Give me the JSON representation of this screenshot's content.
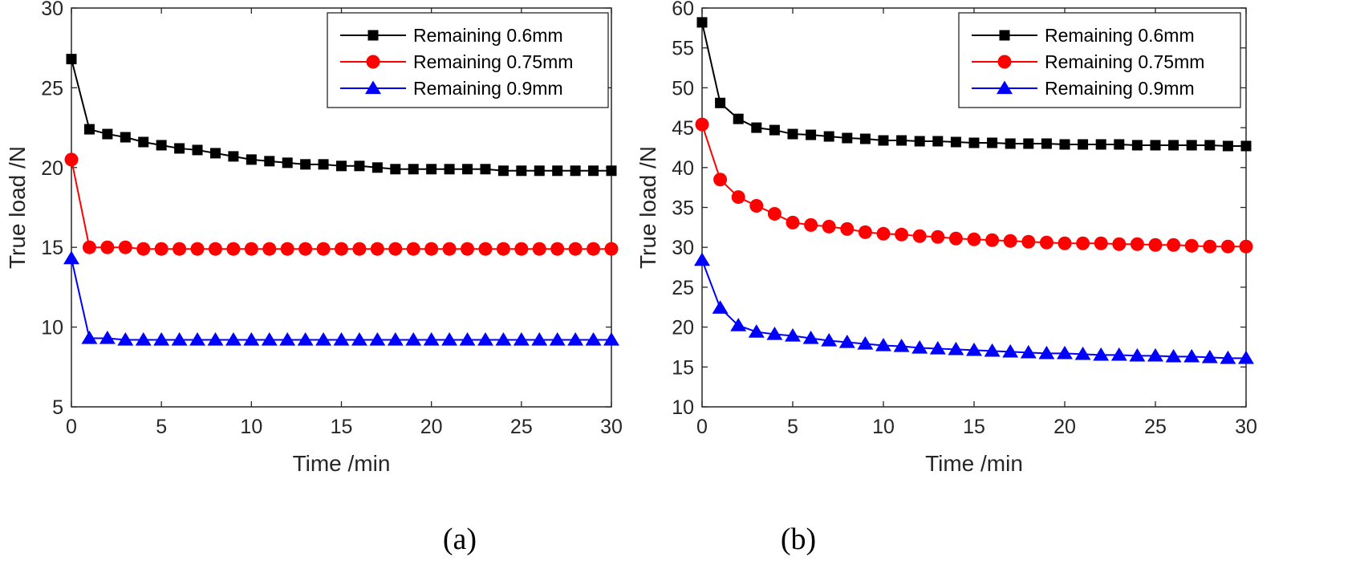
{
  "chart_data": [
    {
      "type": "line",
      "panel_label": "(a)",
      "title": "",
      "xlabel": "Time /min",
      "ylabel": "True load /N",
      "xlim": [
        0,
        30
      ],
      "ylim": [
        5,
        30
      ],
      "xticks": [
        0,
        5,
        10,
        15,
        20,
        25,
        30
      ],
      "yticks": [
        5,
        10,
        15,
        20,
        25,
        30
      ],
      "legend_position": "top-right",
      "x": [
        0,
        1,
        2,
        3,
        4,
        5,
        6,
        7,
        8,
        9,
        10,
        11,
        12,
        13,
        14,
        15,
        16,
        17,
        18,
        19,
        20,
        21,
        22,
        23,
        24,
        25,
        26,
        27,
        28,
        29,
        30
      ],
      "series": [
        {
          "name": "Remaining 0.6mm",
          "color": "#000000",
          "marker": "square",
          "values": [
            26.8,
            22.4,
            22.1,
            21.9,
            21.6,
            21.4,
            21.2,
            21.1,
            20.9,
            20.7,
            20.5,
            20.4,
            20.3,
            20.2,
            20.2,
            20.1,
            20.1,
            20.0,
            19.9,
            19.9,
            19.9,
            19.9,
            19.9,
            19.9,
            19.8,
            19.8,
            19.8,
            19.8,
            19.8,
            19.8,
            19.8
          ]
        },
        {
          "name": "Remaining 0.75mm",
          "color": "#ff0000",
          "marker": "circle",
          "values": [
            20.5,
            15.0,
            15.0,
            15.0,
            14.9,
            14.9,
            14.9,
            14.9,
            14.9,
            14.9,
            14.9,
            14.9,
            14.9,
            14.9,
            14.9,
            14.9,
            14.9,
            14.9,
            14.9,
            14.9,
            14.9,
            14.9,
            14.9,
            14.9,
            14.9,
            14.9,
            14.9,
            14.9,
            14.9,
            14.9,
            14.9
          ]
        },
        {
          "name": "Remaining 0.9mm",
          "color": "#0000ff",
          "marker": "triangle",
          "values": [
            14.3,
            9.3,
            9.3,
            9.2,
            9.2,
            9.2,
            9.2,
            9.2,
            9.2,
            9.2,
            9.2,
            9.2,
            9.2,
            9.2,
            9.2,
            9.2,
            9.2,
            9.2,
            9.2,
            9.2,
            9.2,
            9.2,
            9.2,
            9.2,
            9.2,
            9.2,
            9.2,
            9.2,
            9.2,
            9.2,
            9.2
          ]
        }
      ]
    },
    {
      "type": "line",
      "panel_label": "(b)",
      "title": "",
      "xlabel": "Time /min",
      "ylabel": "True load /N",
      "xlim": [
        0,
        30
      ],
      "ylim": [
        10,
        60
      ],
      "xticks": [
        0,
        5,
        10,
        15,
        20,
        25,
        30
      ],
      "yticks": [
        10,
        15,
        20,
        25,
        30,
        35,
        40,
        45,
        50,
        55,
        60
      ],
      "legend_position": "top-right",
      "x": [
        0,
        1,
        2,
        3,
        4,
        5,
        6,
        7,
        8,
        9,
        10,
        11,
        12,
        13,
        14,
        15,
        16,
        17,
        18,
        19,
        20,
        21,
        22,
        23,
        24,
        25,
        26,
        27,
        28,
        29,
        30
      ],
      "series": [
        {
          "name": "Remaining 0.6mm",
          "color": "#000000",
          "marker": "square",
          "values": [
            58.2,
            48.1,
            46.1,
            45.0,
            44.7,
            44.2,
            44.1,
            43.9,
            43.7,
            43.6,
            43.4,
            43.4,
            43.3,
            43.3,
            43.2,
            43.1,
            43.1,
            43.0,
            43.0,
            43.0,
            42.9,
            42.9,
            42.9,
            42.9,
            42.8,
            42.8,
            42.8,
            42.8,
            42.8,
            42.7,
            42.7
          ]
        },
        {
          "name": "Remaining 0.75mm",
          "color": "#ff0000",
          "marker": "circle",
          "values": [
            45.4,
            38.5,
            36.3,
            35.2,
            34.2,
            33.1,
            32.8,
            32.6,
            32.3,
            31.9,
            31.7,
            31.6,
            31.4,
            31.3,
            31.1,
            31.0,
            30.9,
            30.8,
            30.7,
            30.6,
            30.5,
            30.5,
            30.5,
            30.4,
            30.4,
            30.3,
            30.3,
            30.2,
            30.1,
            30.1,
            30.1
          ]
        },
        {
          "name": "Remaining 0.9mm",
          "color": "#0000ff",
          "marker": "triangle",
          "values": [
            28.4,
            22.4,
            20.2,
            19.4,
            19.1,
            18.9,
            18.6,
            18.3,
            18.1,
            17.9,
            17.7,
            17.6,
            17.4,
            17.3,
            17.2,
            17.1,
            17.0,
            16.9,
            16.8,
            16.7,
            16.7,
            16.6,
            16.5,
            16.5,
            16.4,
            16.4,
            16.3,
            16.3,
            16.2,
            16.1,
            16.1
          ]
        }
      ]
    }
  ]
}
